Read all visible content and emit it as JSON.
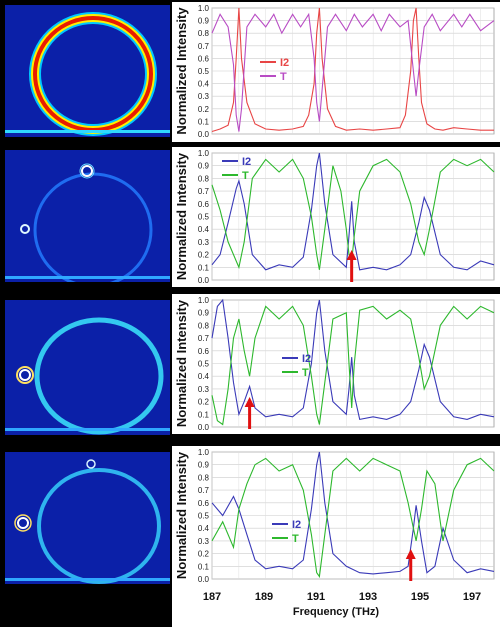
{
  "chart_data": [
    {
      "type": "line",
      "ylabel": "Normalized Intensity",
      "ylim": [
        0,
        1
      ],
      "yticks": [
        "0.0",
        "0.1",
        "0.2",
        "0.3",
        "0.4",
        "0.5",
        "0.6",
        "0.7",
        "0.8",
        "0.9",
        "1.0"
      ],
      "xlim": [
        187,
        197.5
      ],
      "legend_position": "left-upper",
      "series": [
        {
          "name": "I2",
          "color": "#e84545",
          "x": [
            187,
            187.3,
            187.6,
            187.8,
            187.9,
            188.0,
            188.1,
            188.3,
            188.6,
            189,
            189.5,
            190,
            190.4,
            190.6,
            190.8,
            190.9,
            191.0,
            191.1,
            191.3,
            191.6,
            192,
            192.5,
            193,
            193.5,
            194,
            194.2,
            194.4,
            194.5,
            194.6,
            194.7,
            194.8,
            195.0,
            195.3,
            195.6,
            196,
            196.5,
            197,
            197.5
          ],
          "y": [
            0.02,
            0.04,
            0.07,
            0.25,
            0.6,
            1.0,
            0.6,
            0.25,
            0.08,
            0.04,
            0.03,
            0.04,
            0.06,
            0.15,
            0.4,
            0.8,
            1.0,
            0.6,
            0.2,
            0.06,
            0.03,
            0.04,
            0.03,
            0.04,
            0.05,
            0.15,
            0.5,
            0.9,
            1.0,
            0.6,
            0.25,
            0.08,
            0.04,
            0.03,
            0.05,
            0.04,
            0.03,
            0.03
          ]
        },
        {
          "name": "T",
          "color": "#b84cc4",
          "x": [
            187,
            187.3,
            187.6,
            187.8,
            187.9,
            188.0,
            188.1,
            188.3,
            188.6,
            189,
            189.3,
            189.6,
            190,
            190.3,
            190.6,
            190.8,
            190.9,
            191.0,
            191.1,
            191.3,
            191.6,
            192,
            192.3,
            192.6,
            193,
            193.3,
            193.6,
            194,
            194.3,
            194.5,
            194.6,
            194.7,
            194.9,
            195.2,
            195.5,
            196,
            196.3,
            196.6,
            197,
            197.5
          ],
          "y": [
            0.8,
            0.95,
            0.85,
            0.55,
            0.15,
            0.02,
            0.2,
            0.85,
            0.95,
            0.85,
            0.95,
            0.8,
            0.95,
            0.85,
            0.95,
            0.6,
            0.25,
            0.1,
            0.35,
            0.85,
            0.95,
            0.82,
            0.95,
            0.85,
            0.95,
            0.82,
            0.95,
            0.85,
            0.9,
            0.5,
            0.3,
            0.5,
            0.85,
            0.95,
            0.82,
            0.95,
            0.85,
            0.95,
            0.82,
            0.9
          ]
        }
      ]
    },
    {
      "type": "line",
      "ylabel": "Normalized Intensity",
      "ylim": [
        0,
        1
      ],
      "yticks": [
        "0.0",
        "0.1",
        "0.2",
        "0.3",
        "0.4",
        "0.5",
        "0.6",
        "0.7",
        "0.8",
        "0.9",
        "1.0"
      ],
      "xlim": [
        187,
        197.5
      ],
      "legend_position": "top-left",
      "arrow_x": 192.2,
      "series": [
        {
          "name": "I2",
          "color": "#3a3ab8",
          "x": [
            187,
            187.3,
            187.6,
            187.9,
            188.0,
            188.2,
            188.5,
            189,
            189.5,
            190,
            190.4,
            190.7,
            190.9,
            191.0,
            191.2,
            191.5,
            192,
            192.1,
            192.2,
            192.3,
            192.5,
            193,
            193.5,
            194,
            194.4,
            194.7,
            194.9,
            195.1,
            195.5,
            196,
            196.5,
            197,
            197.5
          ],
          "y": [
            0.12,
            0.2,
            0.45,
            0.72,
            0.78,
            0.6,
            0.2,
            0.08,
            0.12,
            0.1,
            0.18,
            0.55,
            0.9,
            1.0,
            0.6,
            0.2,
            0.1,
            0.35,
            0.62,
            0.3,
            0.08,
            0.1,
            0.08,
            0.12,
            0.2,
            0.45,
            0.65,
            0.55,
            0.2,
            0.1,
            0.08,
            0.15,
            0.12
          ]
        },
        {
          "name": "T",
          "color": "#2db82d",
          "x": [
            187,
            187.3,
            187.6,
            187.9,
            188.0,
            188.2,
            188.5,
            189,
            189.5,
            190,
            190.4,
            190.7,
            190.9,
            191.0,
            191.2,
            191.5,
            191.8,
            192,
            192.1,
            192.2,
            192.3,
            192.5,
            193,
            193.5,
            194,
            194.4,
            194.7,
            194.9,
            195.1,
            195.5,
            196,
            196.5,
            197,
            197.5
          ],
          "y": [
            0.75,
            0.55,
            0.3,
            0.15,
            0.1,
            0.3,
            0.8,
            0.95,
            0.85,
            0.95,
            0.8,
            0.5,
            0.2,
            0.08,
            0.4,
            0.9,
            0.7,
            0.4,
            0.2,
            0.15,
            0.35,
            0.7,
            0.9,
            0.95,
            0.85,
            0.6,
            0.3,
            0.2,
            0.4,
            0.85,
            0.95,
            0.9,
            0.95,
            0.85
          ]
        }
      ]
    },
    {
      "type": "line",
      "ylabel": "Normalized Intensity",
      "ylim": [
        0,
        1
      ],
      "yticks": [
        "0.0",
        "0.1",
        "0.2",
        "0.3",
        "0.4",
        "0.5",
        "0.6",
        "0.7",
        "0.8",
        "0.9",
        "1.0"
      ],
      "xlim": [
        187,
        197.5
      ],
      "legend_position": "center",
      "arrow_x": 188.4,
      "series": [
        {
          "name": "I2",
          "color": "#3a3ab8",
          "x": [
            187,
            187.2,
            187.4,
            187.6,
            187.8,
            188.0,
            188.2,
            188.4,
            188.6,
            189,
            189.5,
            190,
            190.4,
            190.7,
            190.9,
            191.0,
            191.2,
            191.5,
            192,
            192.1,
            192.2,
            192.3,
            192.5,
            193,
            193.5,
            194,
            194.4,
            194.7,
            194.9,
            195.1,
            195.5,
            196,
            196.5,
            197,
            197.5
          ],
          "y": [
            0.7,
            0.95,
            1.0,
            0.7,
            0.35,
            0.1,
            0.2,
            0.32,
            0.15,
            0.08,
            0.1,
            0.08,
            0.15,
            0.5,
            0.9,
            1.0,
            0.6,
            0.2,
            0.1,
            0.3,
            0.55,
            0.25,
            0.06,
            0.08,
            0.06,
            0.1,
            0.2,
            0.45,
            0.65,
            0.55,
            0.2,
            0.08,
            0.06,
            0.1,
            0.08
          ]
        },
        {
          "name": "T",
          "color": "#2db82d",
          "x": [
            187,
            187.2,
            187.4,
            187.6,
            187.8,
            188.0,
            188.2,
            188.4,
            188.6,
            189,
            189.5,
            190,
            190.4,
            190.7,
            190.9,
            191.0,
            191.2,
            191.5,
            192,
            192.1,
            192.2,
            192.3,
            192.5,
            193,
            193.5,
            194,
            194.4,
            194.7,
            194.9,
            195.1,
            195.5,
            196,
            196.5,
            197,
            197.5
          ],
          "y": [
            0.25,
            0.05,
            0.02,
            0.3,
            0.7,
            0.85,
            0.6,
            0.4,
            0.7,
            0.95,
            0.85,
            0.95,
            0.8,
            0.4,
            0.1,
            0.02,
            0.35,
            0.85,
            0.9,
            0.5,
            0.15,
            0.5,
            0.92,
            0.95,
            0.85,
            0.92,
            0.85,
            0.55,
            0.3,
            0.4,
            0.8,
            0.95,
            0.85,
            0.95,
            0.9
          ]
        }
      ]
    },
    {
      "type": "line",
      "ylabel": "Normalized Intensity",
      "ylim": [
        0,
        1
      ],
      "yticks": [
        "0.0",
        "0.1",
        "0.2",
        "0.3",
        "0.4",
        "0.5",
        "0.6",
        "0.7",
        "0.8",
        "0.9",
        "1.0"
      ],
      "xlim": [
        187,
        197.5
      ],
      "xticks": [
        "187",
        "189",
        "191",
        "193",
        "195",
        "197"
      ],
      "xlabel": "Frequency (THz)",
      "legend_position": "bottom-left",
      "arrow_x": 194.4,
      "series": [
        {
          "name": "I2",
          "color": "#3a3ab8",
          "x": [
            187,
            187.4,
            187.8,
            188.0,
            188.3,
            188.6,
            189,
            189.5,
            190,
            190.4,
            190.7,
            190.9,
            191.0,
            191.2,
            191.5,
            192,
            192.5,
            193,
            193.5,
            194,
            194.3,
            194.5,
            194.6,
            194.8,
            195.0,
            195.3,
            195.6,
            196,
            196.5,
            197,
            197.5
          ],
          "y": [
            0.6,
            0.5,
            0.65,
            0.55,
            0.35,
            0.15,
            0.08,
            0.1,
            0.08,
            0.15,
            0.55,
            0.9,
            1.0,
            0.6,
            0.2,
            0.1,
            0.05,
            0.04,
            0.05,
            0.06,
            0.1,
            0.4,
            0.58,
            0.3,
            0.05,
            0.1,
            0.4,
            0.15,
            0.05,
            0.08,
            0.06
          ]
        },
        {
          "name": "T",
          "color": "#2db82d",
          "x": [
            187,
            187.4,
            187.8,
            188.0,
            188.3,
            188.6,
            189,
            189.5,
            190,
            190.4,
            190.7,
            190.9,
            191.0,
            191.2,
            191.5,
            192,
            192.5,
            193,
            193.5,
            194,
            194.3,
            194.5,
            194.6,
            194.8,
            195.0,
            195.3,
            195.6,
            196,
            196.5,
            197,
            197.5
          ],
          "y": [
            0.3,
            0.45,
            0.25,
            0.55,
            0.75,
            0.9,
            0.95,
            0.85,
            0.9,
            0.7,
            0.35,
            0.05,
            0.02,
            0.35,
            0.85,
            0.95,
            0.85,
            0.95,
            0.9,
            0.85,
            0.6,
            0.4,
            0.3,
            0.55,
            0.85,
            0.75,
            0.3,
            0.7,
            0.9,
            0.95,
            0.85
          ]
        }
      ]
    }
  ]
}
